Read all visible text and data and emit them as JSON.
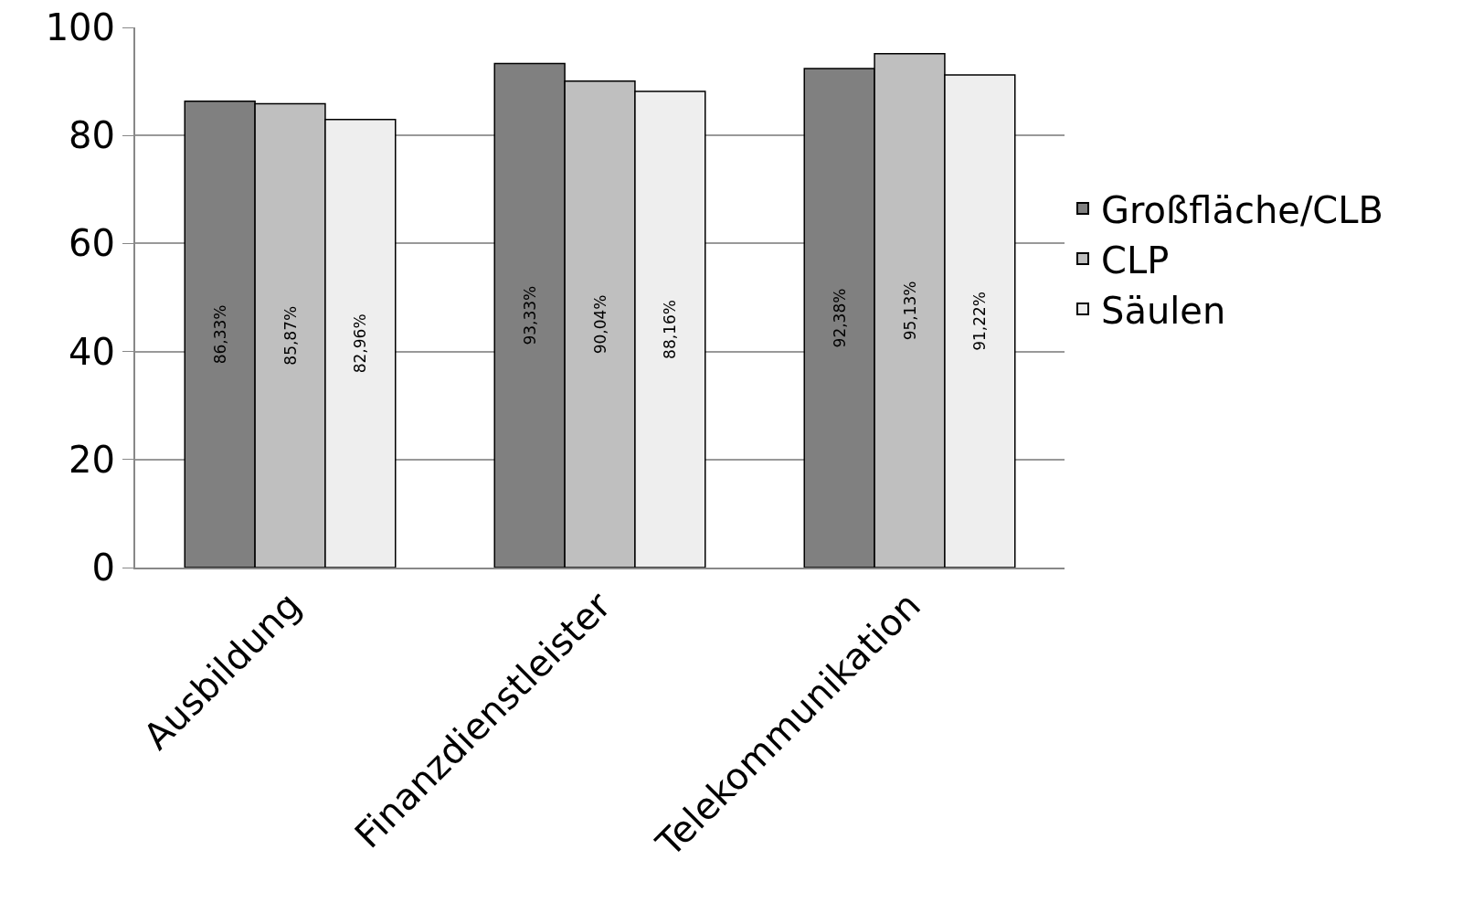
{
  "chart_data": {
    "type": "bar",
    "categories": [
      "Ausbildung",
      "Finanzdienstleister",
      "Telekommunikation"
    ],
    "series": [
      {
        "name": "Großfläche/CLB",
        "color": "#808080",
        "values": [
          86.33,
          93.33,
          92.38
        ],
        "value_labels": [
          "86,33%",
          "93,33%",
          "92,38%"
        ]
      },
      {
        "name": "CLP",
        "color": "#bfbfbf",
        "values": [
          85.87,
          90.04,
          95.13
        ],
        "value_labels": [
          "85,87%",
          "90,04%",
          "95,13%"
        ]
      },
      {
        "name": "Säulen",
        "color": "#eeeeee",
        "values": [
          82.96,
          88.16,
          91.22
        ],
        "value_labels": [
          "82,96%",
          "88,16%",
          "91,22%"
        ]
      }
    ],
    "ylim": [
      0,
      100
    ],
    "yticks": [
      0,
      20,
      40,
      60,
      80,
      100
    ],
    "grid": "y",
    "legend": "right"
  }
}
